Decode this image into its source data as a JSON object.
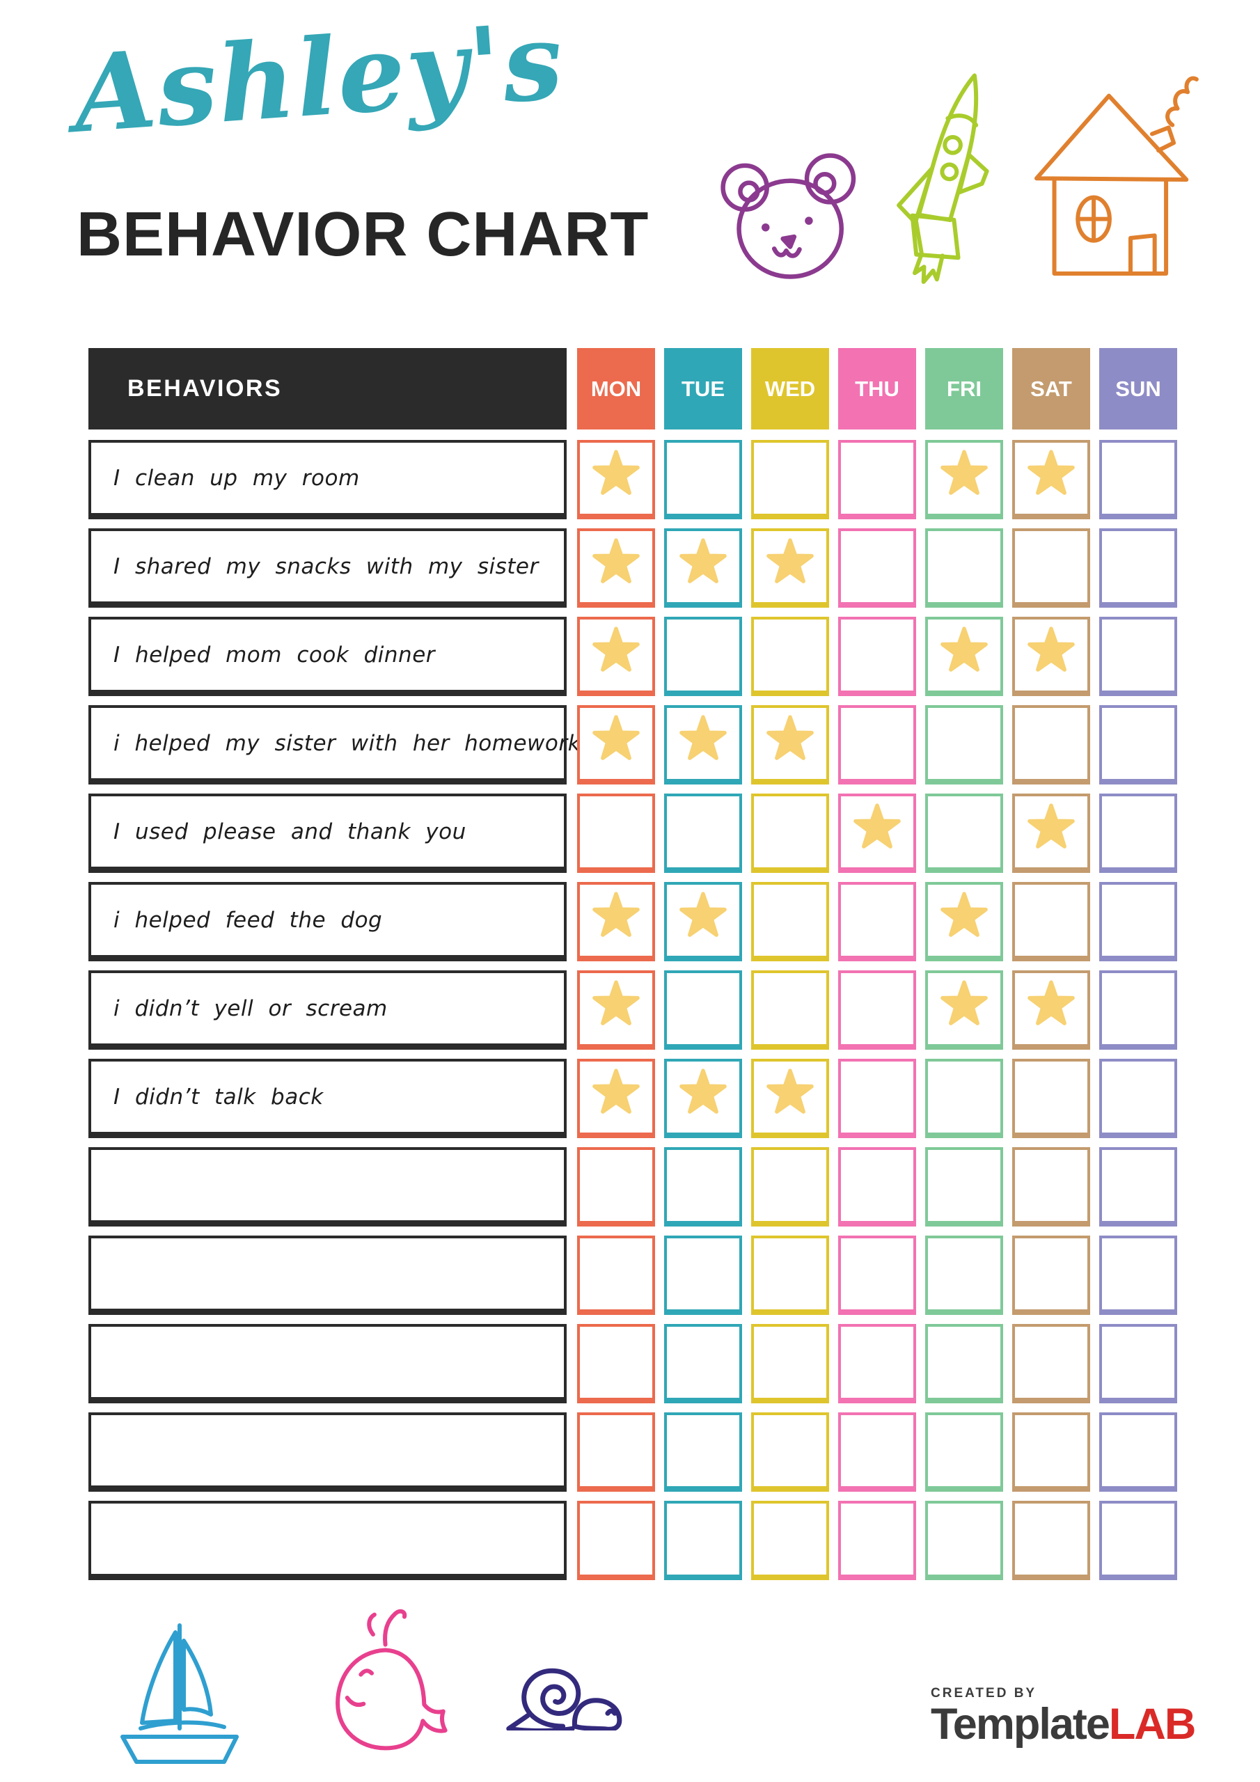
{
  "title": {
    "script": "Ashley's",
    "heading": "BEHAVIOR CHART"
  },
  "colors": {
    "script": "#35a7b6",
    "heading": "#262626",
    "created_by": "#3c3c3c",
    "logo_dark": "#3b3b3b",
    "logo_red": "#da2a27"
  },
  "doodles": {
    "bear": {
      "icon": "bear-icon",
      "color": "#8b3a8f"
    },
    "rocket": {
      "icon": "rocket-icon",
      "color": "#a9cc2c"
    },
    "house": {
      "icon": "house-icon",
      "color": "#e0802e"
    },
    "sailboat": {
      "icon": "sailboat-icon",
      "color": "#2f9fd0"
    },
    "whale": {
      "icon": "whale-icon",
      "color": "#e8408e"
    },
    "snail": {
      "icon": "snail-icon",
      "color": "#332a7d"
    }
  },
  "table": {
    "behaviors_header": "BEHAVIORS",
    "header_bg": "#2b2b2b",
    "star_color": "#f7d172",
    "star_icon": "star-icon",
    "days": [
      {
        "label": "MON",
        "color": "#ec6a4d"
      },
      {
        "label": "TUE",
        "color": "#30a7b6"
      },
      {
        "label": "WED",
        "color": "#dfc52d"
      },
      {
        "label": "THU",
        "color": "#f272b2"
      },
      {
        "label": "FRI",
        "color": "#7fc998"
      },
      {
        "label": "SAT",
        "color": "#c39b6e"
      },
      {
        "label": "SUN",
        "color": "#8e8cc6"
      }
    ],
    "rows": [
      {
        "behavior": "I clean up my room",
        "stars": [
          1,
          0,
          0,
          0,
          1,
          1,
          0
        ]
      },
      {
        "behavior": "I shared my snacks with my sister",
        "stars": [
          1,
          1,
          1,
          0,
          0,
          0,
          0
        ]
      },
      {
        "behavior": "I helped mom cook dinner",
        "stars": [
          1,
          0,
          0,
          0,
          1,
          1,
          0
        ]
      },
      {
        "behavior": "i helped my sister with her homework",
        "stars": [
          1,
          1,
          1,
          0,
          0,
          0,
          0
        ]
      },
      {
        "behavior": "I used please and thank you",
        "stars": [
          0,
          0,
          0,
          1,
          0,
          1,
          0
        ]
      },
      {
        "behavior": "i helped feed the dog",
        "stars": [
          1,
          1,
          0,
          0,
          1,
          0,
          0
        ]
      },
      {
        "behavior": "i didn’t yell or scream",
        "stars": [
          1,
          0,
          0,
          0,
          1,
          1,
          0
        ]
      },
      {
        "behavior": "I didn’t talk back",
        "stars": [
          1,
          1,
          1,
          0,
          0,
          0,
          0
        ]
      },
      {
        "behavior": "",
        "stars": [
          0,
          0,
          0,
          0,
          0,
          0,
          0
        ]
      },
      {
        "behavior": "",
        "stars": [
          0,
          0,
          0,
          0,
          0,
          0,
          0
        ]
      },
      {
        "behavior": "",
        "stars": [
          0,
          0,
          0,
          0,
          0,
          0,
          0
        ]
      },
      {
        "behavior": "",
        "stars": [
          0,
          0,
          0,
          0,
          0,
          0,
          0
        ]
      },
      {
        "behavior": "",
        "stars": [
          0,
          0,
          0,
          0,
          0,
          0,
          0
        ]
      }
    ]
  },
  "footer": {
    "created_by": "CREATED BY",
    "brand_primary": "Template",
    "brand_accent": "LAB"
  }
}
